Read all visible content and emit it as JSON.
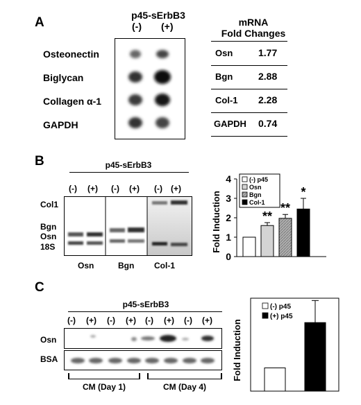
{
  "panel_a": {
    "letter": "A",
    "group_title": "p45-sErbB3",
    "lane_minus": "(-)",
    "lane_plus": "(+)",
    "row_labels": [
      "Osteonectin",
      "Biglycan",
      "Collagen α-1",
      "GAPDH"
    ],
    "table": {
      "header_line1": "mRNA",
      "header_line2": "Fold Changes",
      "rows": [
        {
          "gene": "Osn",
          "value": "1.77"
        },
        {
          "gene": "Bgn",
          "value": "2.88"
        },
        {
          "gene": "Col-1",
          "value": "2.28"
        },
        {
          "gene": "GAPDH",
          "value": "0.74"
        }
      ]
    }
  },
  "panel_b": {
    "letter": "B",
    "group_title": "p45-sErbB3",
    "lane_labels": [
      "(-)",
      "(+)",
      "(-)",
      "(+)",
      "(-)",
      "(+)"
    ],
    "band_labels": [
      "Col1",
      "Bgn",
      "Osn",
      "18S"
    ],
    "gel_labels": [
      "Osn",
      "Bgn",
      "Col-1"
    ]
  },
  "panel_c": {
    "letter": "C",
    "group_title": "p45-sErbB3",
    "lane_labels": [
      "(-)",
      "(+)",
      "(-)",
      "(+)",
      "(-)",
      "(+)",
      "(-)",
      "(+)"
    ],
    "row_labels": [
      "Osn",
      "BSA"
    ],
    "cm_labels": [
      "CM (Day 1)",
      "CM (Day 4)"
    ]
  },
  "chart_data": [
    {
      "type": "bar",
      "ylabel": "Fold Induction",
      "ylim": [
        0,
        4
      ],
      "yticks": [
        "0",
        "1",
        "2",
        "3",
        "4"
      ],
      "legend_placement": "top-left",
      "legend": [
        "(-) p45",
        "Osn",
        "Bgn",
        "Col-1"
      ],
      "series": [
        {
          "name": "(-) p45",
          "value": 1.0,
          "error": 0,
          "annotation": "",
          "fill": "#ffffff"
        },
        {
          "name": "Osn",
          "value": 1.6,
          "error": 0.15,
          "annotation": "**",
          "fill": "#d4d4d4"
        },
        {
          "name": "Bgn",
          "value": 1.97,
          "error": 0.2,
          "annotation": "**",
          "fill": "#a8a8a8"
        },
        {
          "name": "Col-1",
          "value": 2.45,
          "error": 0.55,
          "annotation": "*",
          "fill": "#000000"
        }
      ]
    },
    {
      "type": "bar",
      "ylabel": "Fold Induction",
      "ylim": [
        0,
        4
      ],
      "legend_placement": "top-left",
      "legend": [
        "(-) p45",
        "(+) p45"
      ],
      "series": [
        {
          "name": "(-) p45",
          "value": 1.0,
          "error": 0,
          "annotation": "",
          "fill": "#ffffff"
        },
        {
          "name": "(+) p45",
          "value": 2.95,
          "error": 0.95,
          "annotation": "*",
          "fill": "#000000"
        }
      ]
    }
  ]
}
